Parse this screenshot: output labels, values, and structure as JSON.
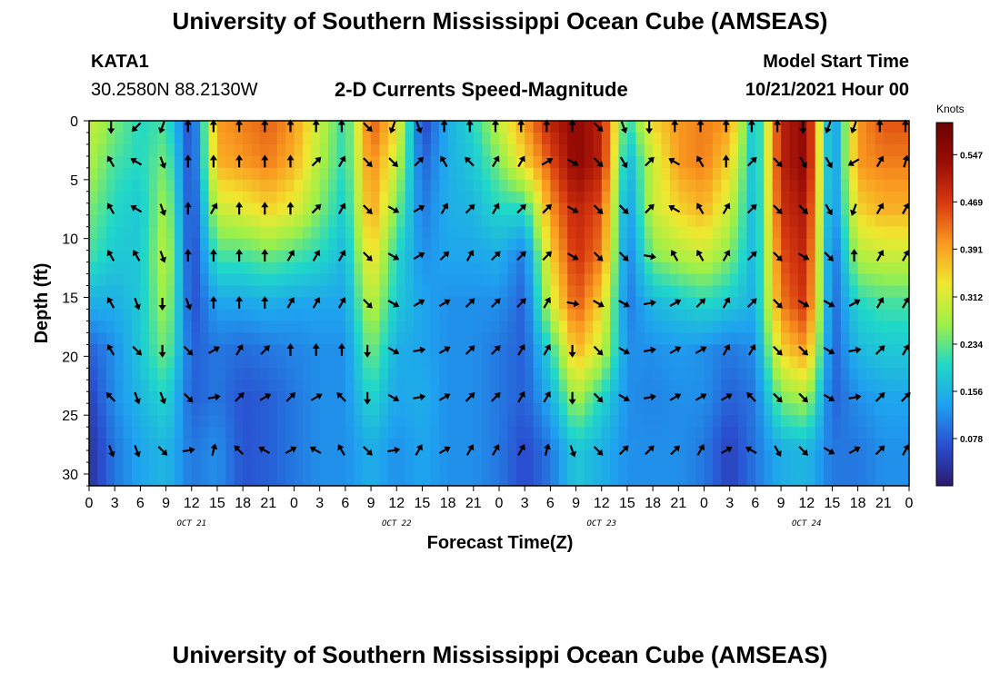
{
  "header": {
    "title": "University of Southern Mississippi Ocean Cube (AMSEAS)",
    "station_id": "KATA1",
    "coordinates": "30.2580N  88.2130W",
    "subtitle": "2-D Currents Speed-Magnitude",
    "model_start_label": "Model Start Time",
    "model_start_value": "10/21/2021 Hour 00"
  },
  "footer": {
    "title": "University of Southern Mississippi Ocean Cube (AMSEAS)"
  },
  "colors": {
    "colormap": [
      "#2b1a6e",
      "#2a4fd0",
      "#1fa0f0",
      "#20d8c8",
      "#9ef048",
      "#f0e830",
      "#fa9a20",
      "#d83a10",
      "#9a0c05",
      "#6a0202"
    ]
  },
  "chart_data": {
    "type": "heatmap",
    "title": "2-D Currents Speed-Magnitude",
    "xlabel": "Forecast Time(Z)",
    "ylabel": "Depth (ft)",
    "x_tick_labels": [
      "0",
      "3",
      "6",
      "9",
      "12",
      "15",
      "18",
      "21",
      "0",
      "3",
      "6",
      "9",
      "12",
      "15",
      "18",
      "21",
      "0",
      "3",
      "6",
      "9",
      "12",
      "15",
      "18",
      "21",
      "0",
      "3",
      "6",
      "9",
      "12",
      "15",
      "18",
      "21",
      "0"
    ],
    "date_labels": [
      {
        "label": "OCT 21",
        "hour": 12
      },
      {
        "label": "OCT 22",
        "hour": 36
      },
      {
        "label": "OCT 23",
        "hour": 60
      },
      {
        "label": "OCT 24",
        "hour": 84
      }
    ],
    "xlim": [
      0,
      96
    ],
    "ylim": [
      0,
      31
    ],
    "y_ticks": [
      0,
      5,
      10,
      15,
      20,
      25,
      30
    ],
    "colorbar": {
      "unit": "Knots",
      "ticks": [
        "0.547",
        "0.469",
        "0.391",
        "0.312",
        "0.234",
        "0.156",
        "0.078"
      ],
      "tick_values": [
        0.547,
        0.469,
        0.391,
        0.312,
        0.234,
        0.156,
        0.078
      ],
      "range": [
        0,
        0.6
      ]
    },
    "times": [
      0,
      3,
      6,
      9,
      12,
      15,
      18,
      21,
      24,
      27,
      30,
      33,
      36,
      39,
      42,
      45,
      48,
      51,
      54,
      57,
      60,
      63,
      66,
      69,
      72,
      75,
      78,
      81,
      84,
      87,
      90,
      93,
      96
    ],
    "depths": [
      0,
      3.5,
      7.5,
      11.5,
      15.5,
      19.5,
      23.5,
      28
    ],
    "speed": [
      [
        0.3,
        0.25,
        0.2,
        0.22,
        0.05,
        0.4,
        0.42,
        0.44,
        0.4,
        0.3,
        0.2,
        0.45,
        0.35,
        0.05,
        0.15,
        0.2,
        0.3,
        0.4,
        0.5,
        0.55,
        0.5,
        0.2,
        0.35,
        0.4,
        0.42,
        0.4,
        0.15,
        0.5,
        0.55,
        0.1,
        0.4,
        0.45,
        0.45
      ],
      [
        0.28,
        0.22,
        0.2,
        0.25,
        0.05,
        0.38,
        0.4,
        0.42,
        0.38,
        0.28,
        0.2,
        0.42,
        0.3,
        0.08,
        0.15,
        0.18,
        0.25,
        0.35,
        0.45,
        0.55,
        0.5,
        0.15,
        0.3,
        0.4,
        0.42,
        0.35,
        0.15,
        0.5,
        0.55,
        0.1,
        0.4,
        0.42,
        0.42
      ],
      [
        0.25,
        0.2,
        0.18,
        0.28,
        0.05,
        0.3,
        0.32,
        0.35,
        0.32,
        0.25,
        0.18,
        0.4,
        0.25,
        0.1,
        0.15,
        0.16,
        0.2,
        0.2,
        0.4,
        0.5,
        0.45,
        0.12,
        0.3,
        0.35,
        0.38,
        0.3,
        0.15,
        0.48,
        0.52,
        0.1,
        0.35,
        0.38,
        0.38
      ],
      [
        0.22,
        0.18,
        0.18,
        0.3,
        0.05,
        0.22,
        0.22,
        0.24,
        0.22,
        0.2,
        0.16,
        0.35,
        0.2,
        0.12,
        0.14,
        0.14,
        0.15,
        0.1,
        0.35,
        0.48,
        0.42,
        0.1,
        0.25,
        0.28,
        0.3,
        0.25,
        0.15,
        0.45,
        0.5,
        0.08,
        0.28,
        0.3,
        0.3
      ],
      [
        0.15,
        0.15,
        0.18,
        0.28,
        0.06,
        0.14,
        0.14,
        0.15,
        0.14,
        0.14,
        0.14,
        0.3,
        0.18,
        0.14,
        0.12,
        0.12,
        0.12,
        0.08,
        0.3,
        0.45,
        0.35,
        0.1,
        0.16,
        0.18,
        0.2,
        0.18,
        0.15,
        0.42,
        0.48,
        0.08,
        0.2,
        0.22,
        0.22
      ],
      [
        0.08,
        0.12,
        0.18,
        0.25,
        0.08,
        0.1,
        0.09,
        0.1,
        0.11,
        0.12,
        0.12,
        0.25,
        0.15,
        0.14,
        0.12,
        0.12,
        0.1,
        0.08,
        0.2,
        0.38,
        0.3,
        0.12,
        0.12,
        0.13,
        0.12,
        0.1,
        0.12,
        0.35,
        0.4,
        0.08,
        0.16,
        0.18,
        0.18
      ],
      [
        0.05,
        0.12,
        0.16,
        0.2,
        0.08,
        0.1,
        0.07,
        0.08,
        0.1,
        0.12,
        0.12,
        0.2,
        0.14,
        0.15,
        0.12,
        0.12,
        0.1,
        0.08,
        0.15,
        0.28,
        0.2,
        0.12,
        0.11,
        0.12,
        0.12,
        0.08,
        0.1,
        0.25,
        0.28,
        0.08,
        0.12,
        0.14,
        0.14
      ],
      [
        0.03,
        0.1,
        0.14,
        0.16,
        0.1,
        0.12,
        0.07,
        0.08,
        0.1,
        0.12,
        0.12,
        0.15,
        0.12,
        0.14,
        0.12,
        0.12,
        0.1,
        0.06,
        0.1,
        0.18,
        0.15,
        0.12,
        0.12,
        0.12,
        0.1,
        0.05,
        0.1,
        0.15,
        0.16,
        0.1,
        0.1,
        0.12,
        0.12
      ]
    ],
    "arrow_times": [
      3,
      6,
      9,
      12,
      15,
      18,
      21,
      24,
      27,
      30,
      33,
      36,
      39,
      42,
      45,
      48,
      51,
      54,
      57,
      60,
      63,
      66,
      69,
      72,
      75,
      78,
      81,
      84,
      87,
      90,
      93,
      96
    ],
    "arrow_depths": [
      0.5,
      3.5,
      7.5,
      11.5,
      15.5,
      19.5,
      23.5,
      28
    ],
    "arrow_direction_deg": [
      [
        180,
        225,
        200,
        0,
        0,
        0,
        0,
        0,
        0,
        0,
        135,
        200,
        160,
        0,
        0,
        0,
        0,
        0,
        0,
        135,
        160,
        180,
        0,
        0,
        0,
        0,
        0,
        180,
        200,
        200,
        0,
        0
      ],
      [
        330,
        300,
        160,
        0,
        0,
        0,
        0,
        0,
        45,
        30,
        135,
        135,
        45,
        330,
        315,
        30,
        30,
        60,
        120,
        135,
        150,
        45,
        300,
        330,
        0,
        45,
        135,
        150,
        150,
        240,
        30,
        15
      ],
      [
        330,
        300,
        160,
        0,
        30,
        0,
        0,
        0,
        45,
        30,
        135,
        120,
        60,
        30,
        45,
        30,
        45,
        45,
        120,
        135,
        135,
        45,
        300,
        330,
        30,
        45,
        135,
        135,
        150,
        200,
        30,
        30
      ],
      [
        330,
        330,
        160,
        0,
        0,
        0,
        0,
        30,
        30,
        30,
        135,
        120,
        60,
        45,
        30,
        45,
        45,
        45,
        120,
        135,
        135,
        100,
        330,
        330,
        30,
        45,
        135,
        120,
        135,
        0,
        30,
        30
      ],
      [
        330,
        160,
        180,
        160,
        0,
        0,
        0,
        30,
        30,
        30,
        135,
        120,
        60,
        60,
        45,
        45,
        45,
        30,
        100,
        120,
        120,
        80,
        60,
        45,
        30,
        45,
        135,
        120,
        120,
        60,
        30,
        30
      ],
      [
        330,
        135,
        180,
        135,
        60,
        30,
        45,
        0,
        0,
        0,
        180,
        120,
        80,
        60,
        45,
        45,
        30,
        30,
        180,
        135,
        120,
        80,
        60,
        60,
        30,
        30,
        135,
        135,
        120,
        80,
        45,
        30
      ],
      [
        315,
        160,
        160,
        135,
        80,
        45,
        60,
        45,
        60,
        315,
        180,
        120,
        80,
        60,
        45,
        45,
        30,
        30,
        180,
        135,
        120,
        80,
        60,
        60,
        60,
        315,
        135,
        135,
        120,
        80,
        45,
        45
      ],
      [
        160,
        160,
        135,
        80,
        15,
        315,
        300,
        60,
        300,
        330,
        135,
        80,
        30,
        60,
        30,
        30,
        30,
        15,
        160,
        135,
        45,
        45,
        45,
        30,
        60,
        300,
        150,
        135,
        120,
        60,
        45,
        30
      ]
    ]
  }
}
